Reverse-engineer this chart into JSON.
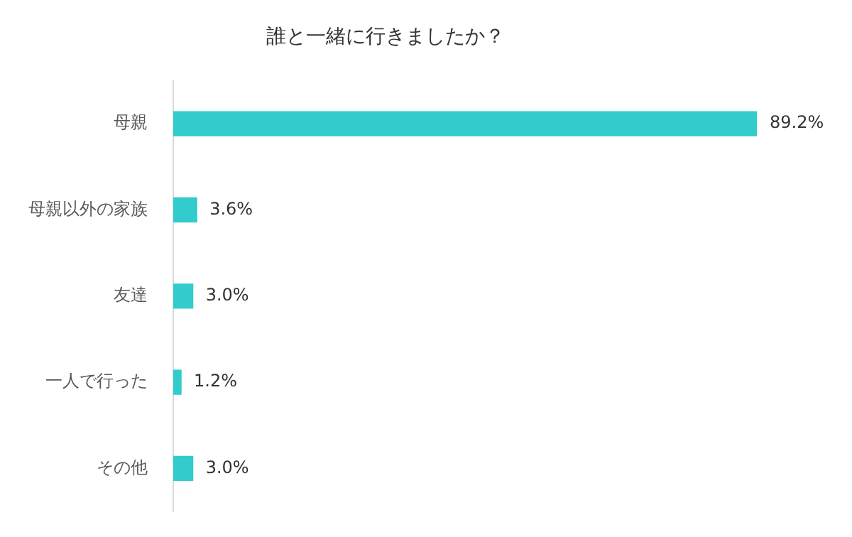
{
  "chart_data": {
    "type": "bar",
    "orientation": "horizontal",
    "title": "誰と一緒に行きましたか？",
    "categories": [
      "母親",
      "母親以外の家族",
      "友達",
      "一人で行った",
      "その他"
    ],
    "values": [
      89.2,
      3.6,
      3.0,
      1.2,
      3.0
    ],
    "value_labels": [
      "89.2%",
      "3.6%",
      "3.0%",
      "1.2%",
      "3.0%"
    ],
    "color": "#33cccc"
  }
}
